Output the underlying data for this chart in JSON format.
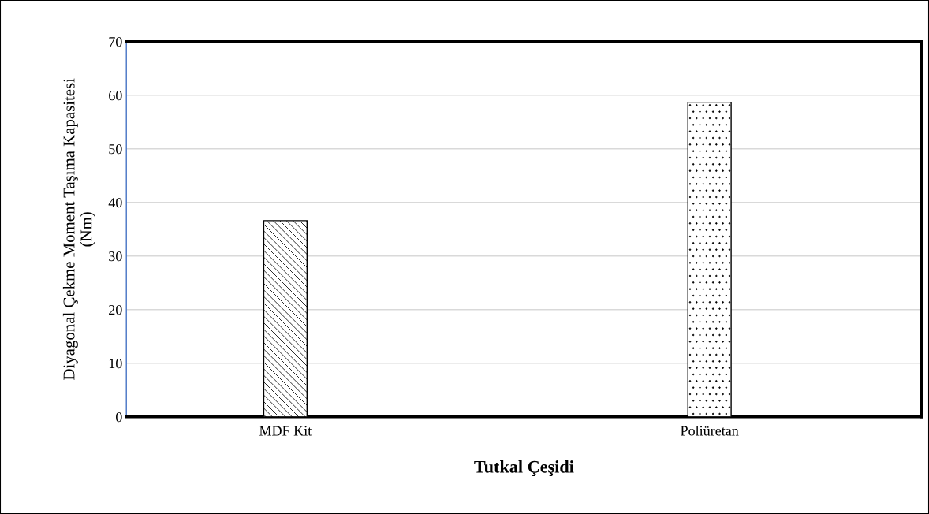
{
  "chart_data": {
    "type": "bar",
    "xlabel": "Tutkal Çeşidi",
    "ylabel": "Diyagonal Çekme Moment Taşıma Kapasitesi\n(Nm)",
    "categories": [
      "MDF Kit",
      "Poliüretan"
    ],
    "values": [
      36.6,
      58.7
    ],
    "color": "#000000",
    "ylim": [
      0,
      70
    ],
    "yticks": [
      0,
      10,
      20,
      30,
      40,
      50,
      60,
      70
    ],
    "grid": "y"
  }
}
